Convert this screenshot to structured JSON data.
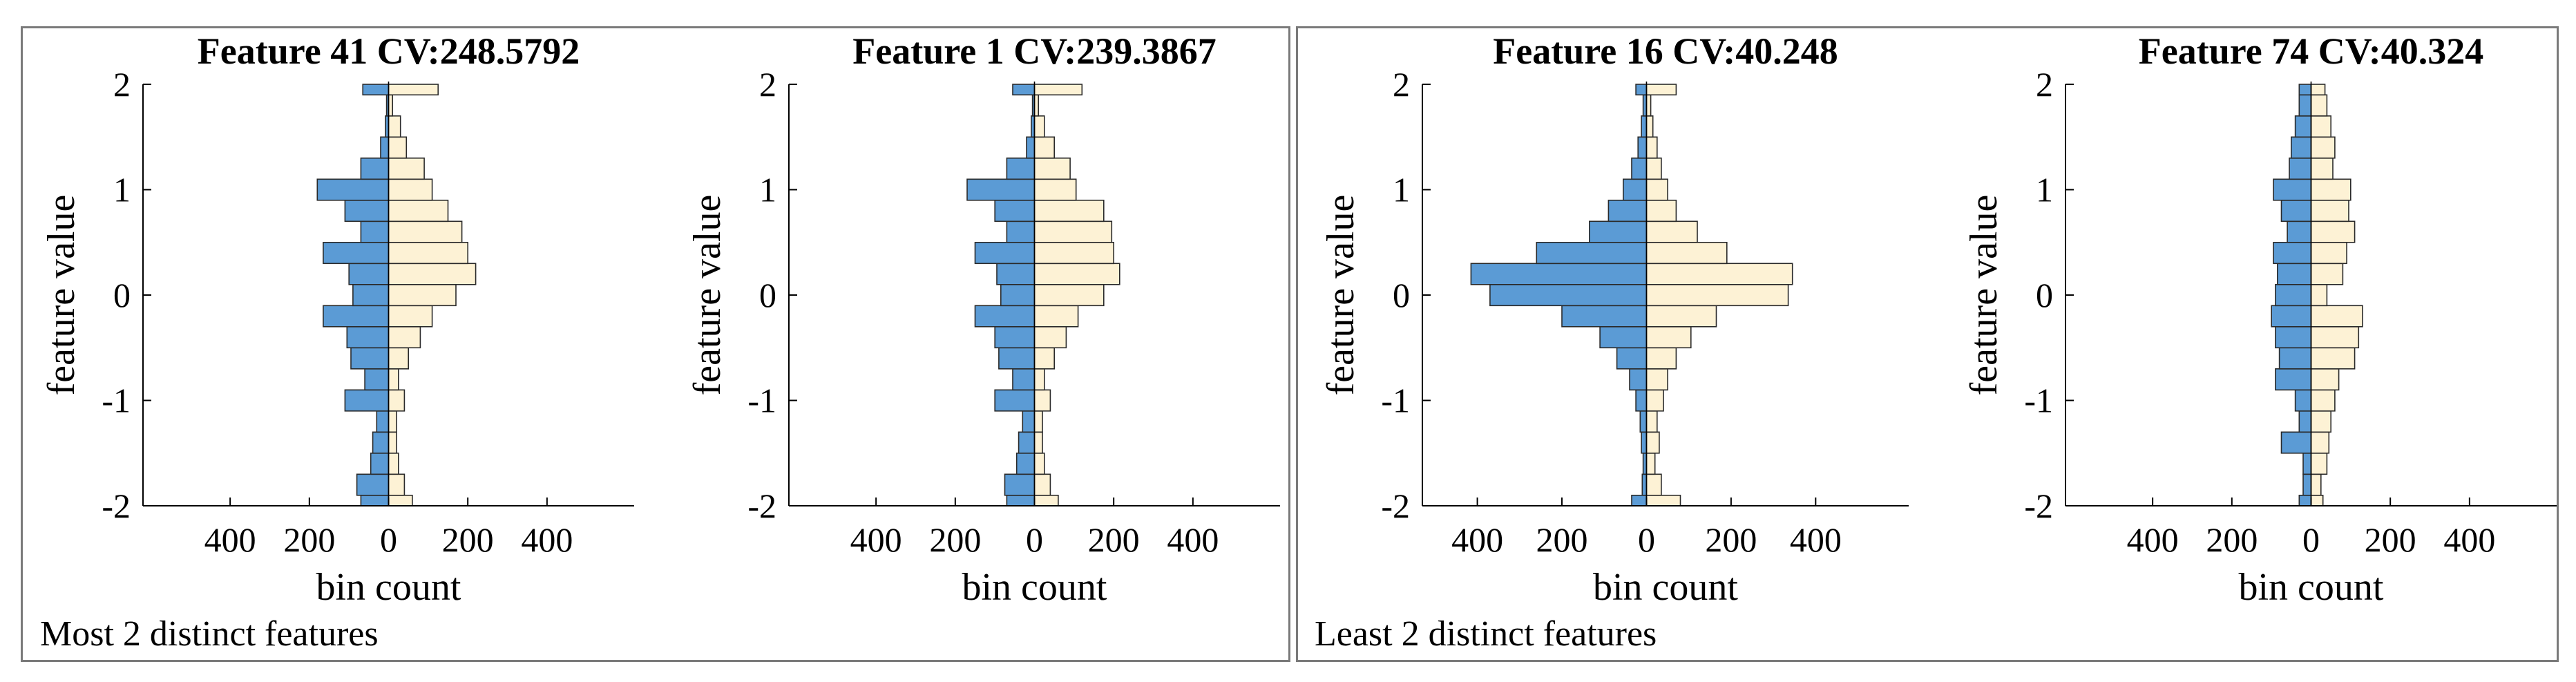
{
  "colors": {
    "left": "#5b9bd5",
    "right": "#fdf2d5",
    "edge": "#2a2a2a",
    "axis": "#000000",
    "frame": "#7a7a7a"
  },
  "captions": {
    "left": "Most 2 distinct features",
    "right": "Least 2 distinct features"
  },
  "chart_data": [
    {
      "type": "bar",
      "orientation": "horizontal",
      "mirrored": true,
      "title": "Feature 41 CV:248.5792",
      "xlabel": "bin count",
      "ylabel": "feature value",
      "xlim": [
        -620,
        620
      ],
      "ylim": [
        -2,
        2
      ],
      "xticks": [
        -400,
        -200,
        0,
        200,
        400
      ],
      "xticklabels": [
        "400",
        "200",
        "0",
        "200",
        "400"
      ],
      "yticks": [
        -2,
        -1,
        0,
        1,
        2
      ],
      "yticklabels": [
        "-2",
        "-1",
        "0",
        "1",
        "2"
      ],
      "bins": [
        -2.0,
        -1.8,
        -1.6,
        -1.4,
        -1.2,
        -1.0,
        -0.8,
        -0.6,
        -0.4,
        -0.2,
        0.0,
        0.2,
        0.4,
        0.6,
        0.8,
        1.0,
        1.2,
        1.4,
        1.6,
        1.8,
        2.0
      ],
      "series": [
        {
          "name": "left",
          "values": [
            70,
            80,
            45,
            40,
            30,
            110,
            60,
            95,
            105,
            165,
            90,
            100,
            165,
            70,
            110,
            180,
            70,
            20,
            8,
            5,
            65
          ]
        },
        {
          "name": "right",
          "values": [
            60,
            40,
            25,
            20,
            20,
            40,
            25,
            50,
            80,
            110,
            170,
            220,
            200,
            185,
            150,
            110,
            90,
            45,
            30,
            10,
            125
          ]
        }
      ]
    },
    {
      "type": "bar",
      "orientation": "horizontal",
      "mirrored": true,
      "title": "Feature 1 CV:239.3867",
      "xlabel": "bin count",
      "ylabel": "feature value",
      "xlim": [
        -620,
        620
      ],
      "ylim": [
        -2,
        2
      ],
      "xticks": [
        -400,
        -200,
        0,
        200,
        400
      ],
      "xticklabels": [
        "400",
        "200",
        "0",
        "200",
        "400"
      ],
      "yticks": [
        -2,
        -1,
        0,
        1,
        2
      ],
      "yticklabels": [
        "-2",
        "-1",
        "0",
        "1",
        "2"
      ],
      "bins": [
        -2.0,
        -1.8,
        -1.6,
        -1.4,
        -1.2,
        -1.0,
        -0.8,
        -0.6,
        -0.4,
        -0.2,
        0.0,
        0.2,
        0.4,
        0.6,
        0.8,
        1.0,
        1.2,
        1.4,
        1.6,
        1.8,
        2.0
      ],
      "series": [
        {
          "name": "left",
          "values": [
            70,
            75,
            45,
            40,
            30,
            100,
            55,
            90,
            100,
            150,
            85,
            95,
            150,
            70,
            100,
            170,
            70,
            20,
            8,
            5,
            55
          ]
        },
        {
          "name": "right",
          "values": [
            60,
            40,
            25,
            20,
            20,
            40,
            25,
            50,
            80,
            110,
            175,
            215,
            200,
            195,
            175,
            105,
            90,
            50,
            25,
            10,
            120
          ]
        }
      ]
    },
    {
      "type": "bar",
      "orientation": "horizontal",
      "mirrored": true,
      "title": "Feature 16 CV:40.248",
      "xlabel": "bin count",
      "ylabel": "feature value",
      "xlim": [
        -530,
        620
      ],
      "ylim": [
        -2,
        2
      ],
      "xticks": [
        -400,
        -200,
        0,
        200,
        400
      ],
      "xticklabels": [
        "400",
        "200",
        "0",
        "200",
        "400"
      ],
      "yticks": [
        -2,
        -1,
        0,
        1,
        2
      ],
      "yticklabels": [
        "-2",
        "-1",
        "0",
        "1",
        "2"
      ],
      "bins": [
        -2.0,
        -1.8,
        -1.6,
        -1.4,
        -1.2,
        -1.0,
        -0.8,
        -0.6,
        -0.4,
        -0.2,
        0.0,
        0.2,
        0.4,
        0.6,
        0.8,
        1.0,
        1.2,
        1.4,
        1.6,
        1.8,
        2.0
      ],
      "series": [
        {
          "name": "left",
          "values": [
            35,
            10,
            8,
            12,
            15,
            25,
            40,
            70,
            110,
            200,
            370,
            415,
            260,
            135,
            90,
            55,
            35,
            20,
            12,
            8,
            25
          ]
        },
        {
          "name": "right",
          "values": [
            80,
            35,
            20,
            30,
            25,
            40,
            50,
            70,
            105,
            165,
            335,
            345,
            190,
            120,
            70,
            50,
            35,
            25,
            15,
            10,
            70
          ]
        }
      ]
    },
    {
      "type": "bar",
      "orientation": "horizontal",
      "mirrored": true,
      "title": "Feature 74 CV:40.324",
      "xlabel": "bin count",
      "ylabel": "feature value",
      "xlim": [
        -620,
        620
      ],
      "ylim": [
        -2,
        2
      ],
      "xticks": [
        -400,
        -200,
        0,
        200,
        400
      ],
      "xticklabels": [
        "400",
        "200",
        "0",
        "200",
        "400"
      ],
      "yticks": [
        -2,
        -1,
        0,
        1,
        2
      ],
      "yticklabels": [
        "-2",
        "-1",
        "0",
        "1",
        "2"
      ],
      "bins": [
        -2.0,
        -1.8,
        -1.6,
        -1.4,
        -1.2,
        -1.0,
        -0.8,
        -0.6,
        -0.4,
        -0.2,
        0.0,
        0.2,
        0.4,
        0.6,
        0.8,
        1.0,
        1.2,
        1.4,
        1.6,
        1.8,
        2.0
      ],
      "series": [
        {
          "name": "left",
          "values": [
            30,
            20,
            20,
            75,
            30,
            40,
            90,
            80,
            90,
            100,
            90,
            85,
            95,
            60,
            75,
            95,
            55,
            50,
            40,
            30,
            30
          ]
        },
        {
          "name": "right",
          "values": [
            30,
            25,
            40,
            45,
            50,
            60,
            70,
            110,
            120,
            130,
            40,
            80,
            90,
            110,
            95,
            100,
            55,
            60,
            50,
            40,
            35
          ]
        }
      ]
    }
  ]
}
